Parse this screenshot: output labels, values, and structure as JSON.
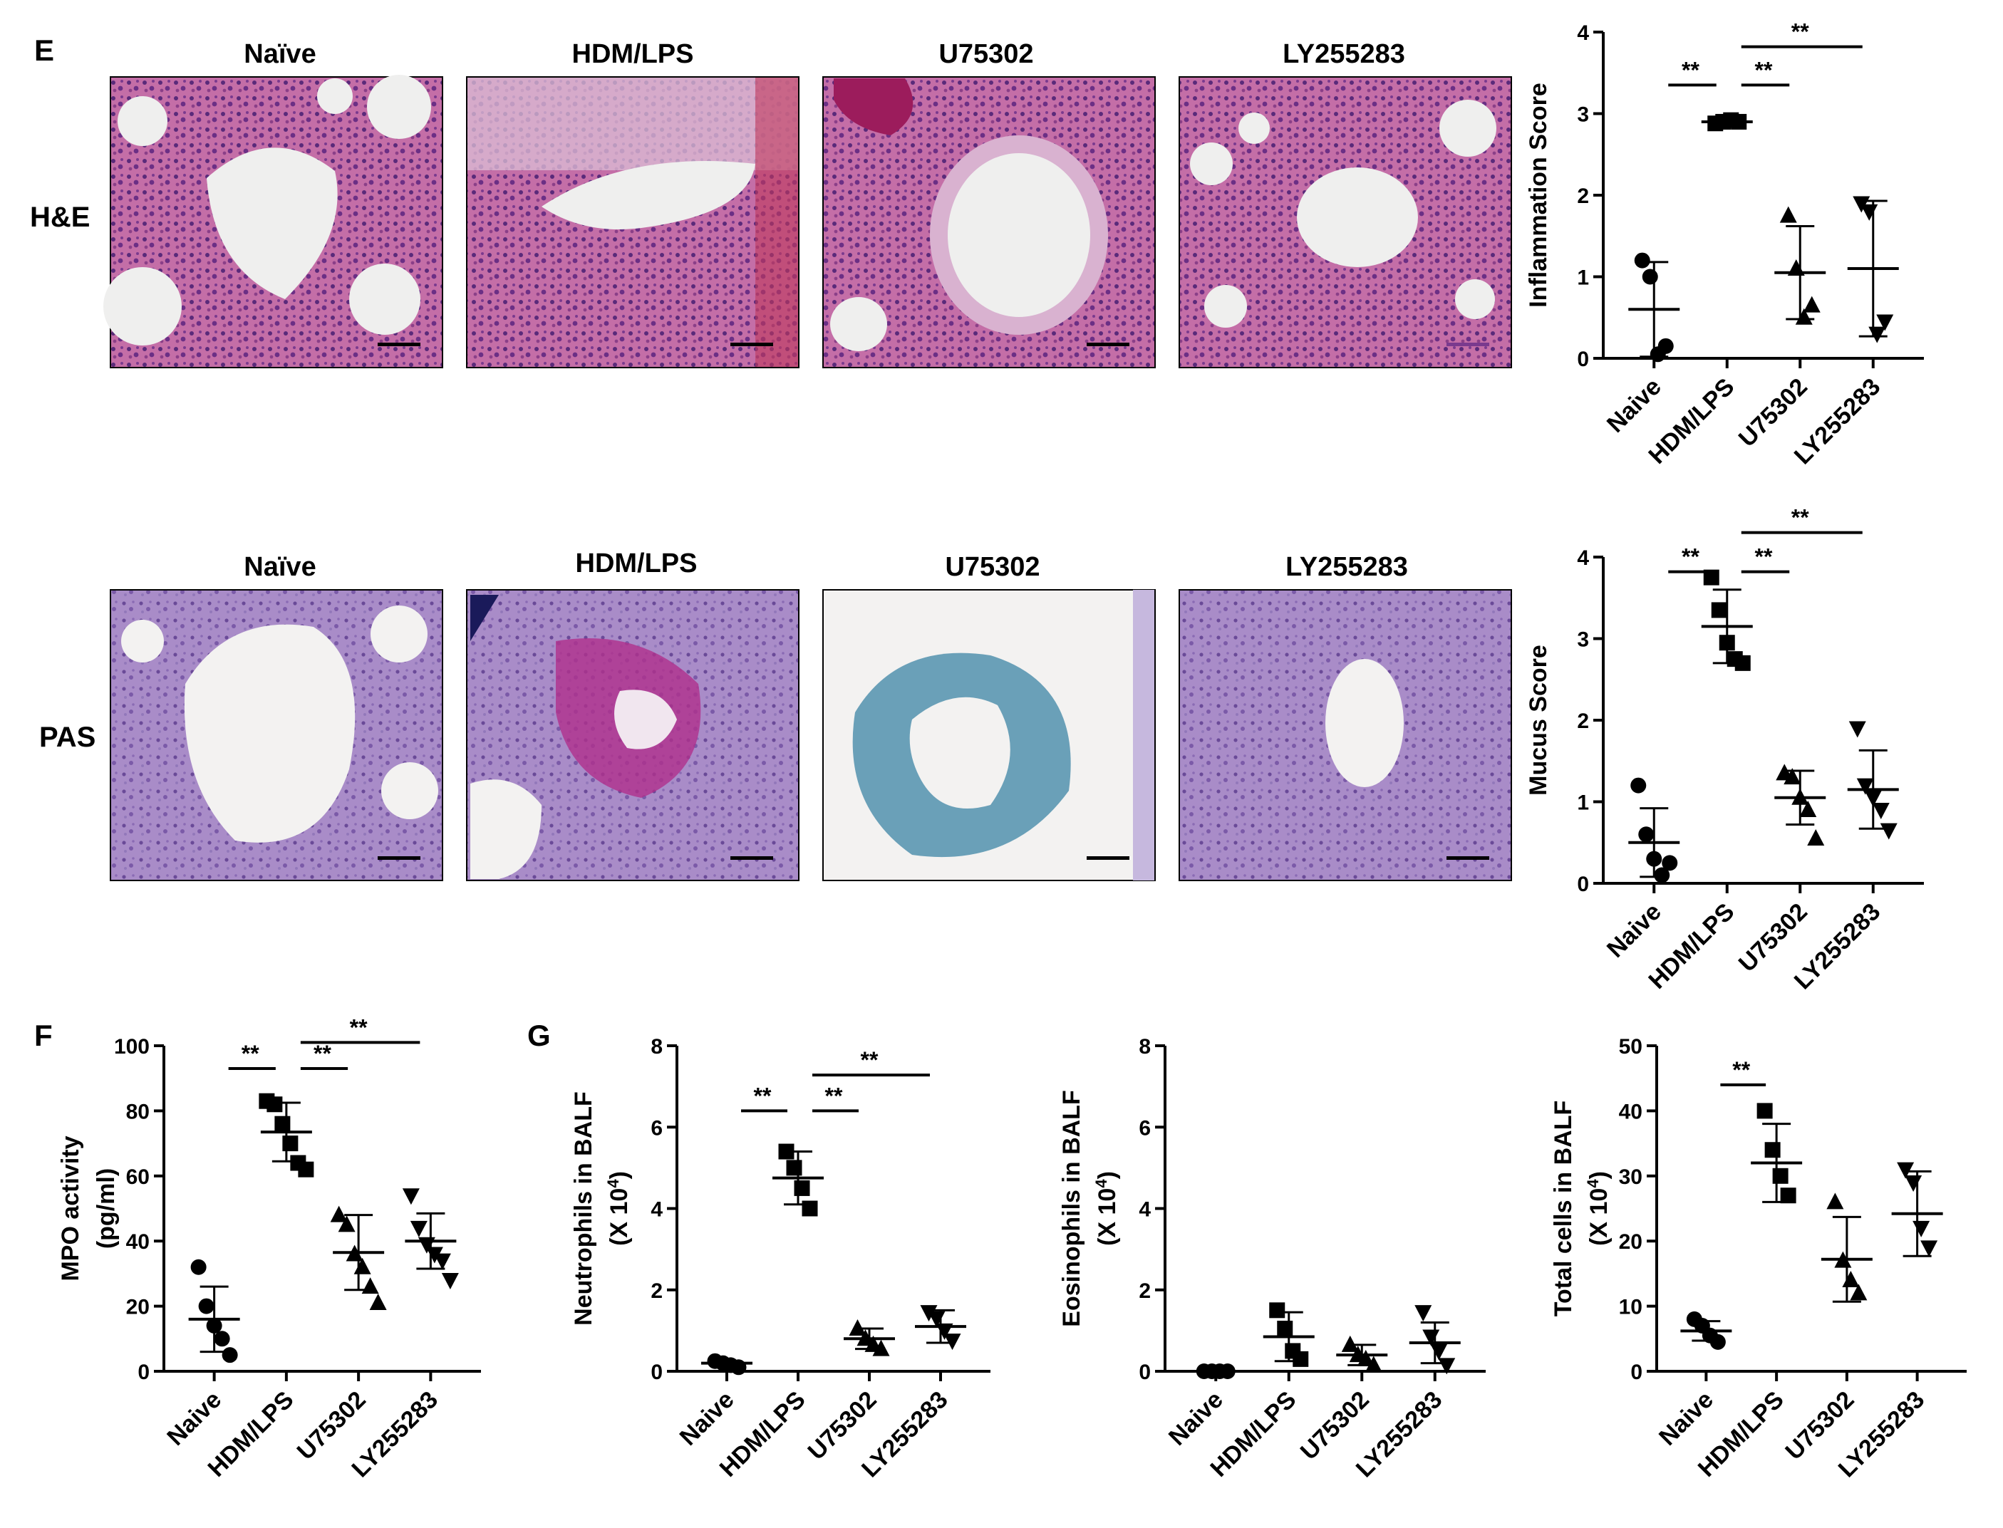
{
  "figure": {
    "panel_letters": [
      "E",
      "F",
      "G"
    ],
    "row_labels": [
      "H&E",
      "PAS"
    ],
    "micrograph_titles": [
      "Naïve",
      "HDM/LPS",
      "U75302",
      "LY255283"
    ]
  },
  "colors": {
    "he_background": "#e6cfe2",
    "he_tissue": "#a8508f",
    "he_tissue_light": "#d9b2d0",
    "he_nuclei": "#5a2a7a",
    "pas_background": "#d7c8e6",
    "pas_tissue": "#9878b8",
    "pas_magenta": "#b0308c",
    "pas_teal": "#6aa0b8",
    "lumen": "#efefee",
    "ink": "#000000"
  },
  "chart_data": [
    {
      "id": "inflammation",
      "type": "scatter",
      "ylabel": "Inflammation Score",
      "categories": [
        "Naive",
        "HDM/LPS",
        "U75302",
        "LY255283"
      ],
      "ylim": [
        0,
        4
      ],
      "yticks": [
        0,
        1,
        2,
        3,
        4
      ],
      "markers": [
        "circle",
        "square",
        "triangle-up",
        "triangle-down"
      ],
      "points": [
        [
          1.2,
          1.0,
          0.05,
          0.15
        ],
        [
          2.88,
          2.9,
          2.92,
          2.9
        ],
        [
          1.75,
          1.1,
          0.5,
          0.65
        ],
        [
          1.9,
          1.8,
          0.3,
          0.45
        ]
      ],
      "mean": [
        0.6,
        2.9,
        1.05,
        1.1
      ],
      "sd": [
        0.58,
        0.03,
        0.57,
        0.83
      ],
      "significance": [
        {
          "a": 0,
          "b": 1,
          "label": "**",
          "y": 3.35
        },
        {
          "a": 1,
          "b": 2,
          "label": "**",
          "y": 3.35
        },
        {
          "a": 1,
          "b": 3,
          "label": "**",
          "y": 3.82
        }
      ]
    },
    {
      "id": "mucus",
      "type": "scatter",
      "ylabel": "Mucus Score",
      "categories": [
        "Naive",
        "HDM/LPS",
        "U75302",
        "LY255283"
      ],
      "ylim": [
        0,
        4
      ],
      "yticks": [
        0,
        1,
        2,
        3,
        4
      ],
      "markers": [
        "circle",
        "square",
        "triangle-up",
        "triangle-down"
      ],
      "points": [
        [
          1.2,
          0.6,
          0.3,
          0.1,
          0.25
        ],
        [
          3.75,
          3.35,
          2.95,
          2.75,
          2.7
        ],
        [
          1.35,
          1.3,
          1.05,
          0.9,
          0.55
        ],
        [
          1.9,
          1.2,
          1.05,
          0.9,
          0.65
        ]
      ],
      "mean": [
        0.5,
        3.15,
        1.05,
        1.15
      ],
      "sd": [
        0.42,
        0.45,
        0.33,
        0.48
      ],
      "significance": [
        {
          "a": 0,
          "b": 1,
          "label": "**",
          "y": 3.82
        },
        {
          "a": 1,
          "b": 2,
          "label": "**",
          "y": 3.82
        },
        {
          "a": 1,
          "b": 3,
          "label": "**",
          "y": 4.3
        }
      ]
    },
    {
      "id": "mpo",
      "type": "scatter",
      "ylabel": [
        "MPO activity",
        "(pg/ml)"
      ],
      "categories": [
        "Naive",
        "HDM/LPS",
        "U75302",
        "LY255283"
      ],
      "ylim": [
        0,
        100
      ],
      "yticks": [
        0,
        20,
        40,
        60,
        80,
        100
      ],
      "markers": [
        "circle",
        "square",
        "triangle-up",
        "triangle-down"
      ],
      "points": [
        [
          32,
          20,
          14,
          10,
          5
        ],
        [
          83,
          82,
          76,
          70,
          64,
          62
        ],
        [
          48,
          45,
          36,
          32,
          26,
          21
        ],
        [
          54,
          44,
          39,
          36,
          34,
          28
        ]
      ],
      "mean": [
        16,
        73.5,
        36.5,
        40
      ],
      "sd": [
        10,
        9,
        11.5,
        8.5
      ],
      "significance": [
        {
          "a": 0,
          "b": 1,
          "label": "**",
          "y": 93
        },
        {
          "a": 1,
          "b": 2,
          "label": "**",
          "y": 93
        },
        {
          "a": 1,
          "b": 3,
          "label": "**",
          "y": 101
        }
      ]
    },
    {
      "id": "neutrophils",
      "type": "scatter",
      "ylabel": [
        "Neutrophils in BALF",
        "(X 10",
        "4",
        ")"
      ],
      "categories": [
        "Naive",
        "HDM/LPS",
        "U75302",
        "LY255283"
      ],
      "ylim": [
        0,
        8
      ],
      "yticks": [
        0,
        2,
        4,
        6,
        8
      ],
      "markers": [
        "circle",
        "square",
        "triangle-up",
        "triangle-down"
      ],
      "points": [
        [
          0.25,
          0.2,
          0.15,
          0.1
        ],
        [
          5.4,
          5.0,
          4.5,
          4.0
        ],
        [
          1.05,
          0.8,
          0.65,
          0.55
        ],
        [
          1.45,
          1.3,
          1.0,
          0.75
        ]
      ],
      "mean": [
        0.2,
        4.75,
        0.8,
        1.1
      ],
      "sd": [
        0.05,
        0.65,
        0.25,
        0.4
      ],
      "significance": [
        {
          "a": 0,
          "b": 1,
          "label": "**",
          "y": 6.4
        },
        {
          "a": 1,
          "b": 2,
          "label": "**",
          "y": 6.4
        },
        {
          "a": 1,
          "b": 3,
          "label": "**",
          "y": 7.28
        }
      ]
    },
    {
      "id": "eosinophils",
      "type": "scatter",
      "ylabel": [
        "Eosinophils in BALF",
        "(X 10",
        "4",
        ")"
      ],
      "categories": [
        "Naive",
        "HDM/LPS",
        "U75302",
        "LY255283"
      ],
      "ylim": [
        0,
        8
      ],
      "yticks": [
        0,
        2,
        4,
        6,
        8
      ],
      "markers": [
        "circle",
        "square",
        "triangle-up",
        "triangle-down"
      ],
      "points": [
        [
          0.0,
          0.0,
          0.0,
          0.0
        ],
        [
          1.5,
          1.05,
          0.5,
          0.3
        ],
        [
          0.65,
          0.4,
          0.3,
          0.15
        ],
        [
          1.45,
          0.85,
          0.5,
          0.15
        ]
      ],
      "mean": [
        0.0,
        0.85,
        0.4,
        0.7
      ],
      "sd": [
        0.0,
        0.6,
        0.25,
        0.5
      ],
      "significance": []
    },
    {
      "id": "total_cells",
      "type": "scatter",
      "ylabel": [
        "Total cells in  BALF",
        "(X 10",
        "4",
        ")"
      ],
      "categories": [
        "Naive",
        "HDM/LPS",
        "U75302",
        "LY255283"
      ],
      "ylim": [
        0,
        50
      ],
      "yticks": [
        0,
        10,
        20,
        30,
        40,
        50
      ],
      "markers": [
        "circle",
        "square",
        "triangle-up",
        "triangle-down"
      ],
      "points": [
        [
          8,
          7,
          5.5,
          4.5
        ],
        [
          40,
          34,
          30,
          27
        ],
        [
          26,
          17,
          14,
          12
        ],
        [
          31,
          29,
          22,
          19
        ]
      ],
      "mean": [
        6.2,
        32,
        17.2,
        24.2
      ],
      "sd": [
        1.5,
        6,
        6.5,
        6.5
      ],
      "significance": [
        {
          "a": 0,
          "b": 1,
          "label": "**",
          "y": 44
        }
      ]
    }
  ]
}
